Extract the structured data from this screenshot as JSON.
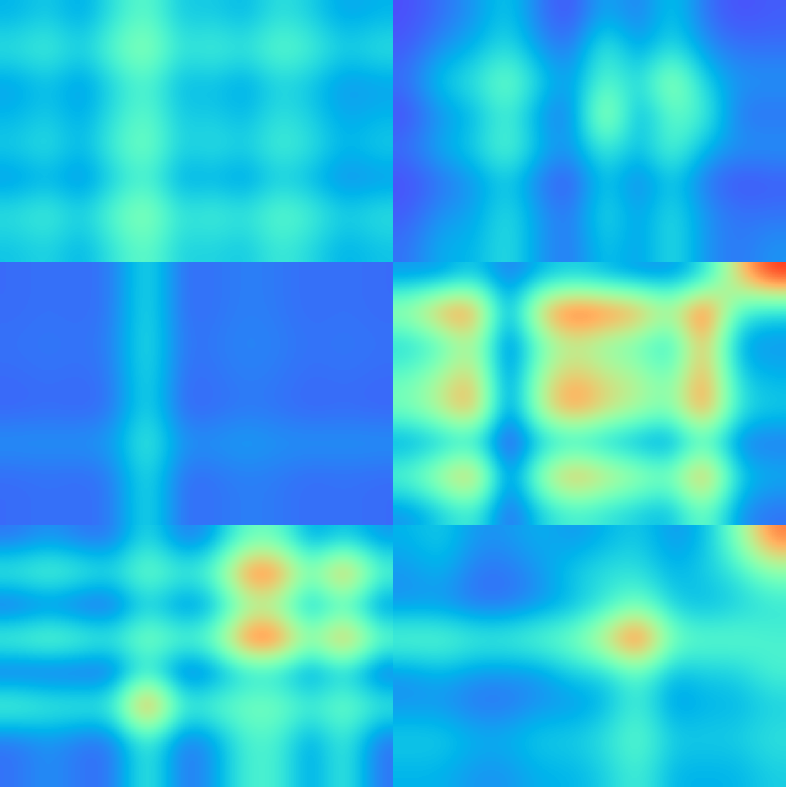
{
  "chart_data": [
    {
      "type": "heatmap",
      "color": "rainbow",
      "tick_labels": false,
      "clim": [
        0,
        1
      ],
      "cells": [
        [
          0.25,
          0.3,
          0.22,
          0.35,
          0.45,
          0.28,
          0.3,
          0.25,
          0.35,
          0.3,
          0.22,
          0.25
        ],
        [
          0.35,
          0.4,
          0.3,
          0.45,
          0.55,
          0.35,
          0.4,
          0.35,
          0.45,
          0.4,
          0.3,
          0.35
        ],
        [
          0.22,
          0.28,
          0.2,
          0.32,
          0.42,
          0.25,
          0.28,
          0.22,
          0.32,
          0.28,
          0.2,
          0.22
        ],
        [
          0.25,
          0.3,
          0.22,
          0.35,
          0.45,
          0.28,
          0.3,
          0.25,
          0.35,
          0.3,
          0.22,
          0.25
        ],
        [
          0.3,
          0.35,
          0.25,
          0.4,
          0.5,
          0.3,
          0.35,
          0.3,
          0.4,
          0.35,
          0.25,
          0.3
        ],
        [
          0.2,
          0.25,
          0.18,
          0.3,
          0.4,
          0.22,
          0.25,
          0.2,
          0.3,
          0.25,
          0.18,
          0.2
        ],
        [
          0.35,
          0.4,
          0.3,
          0.45,
          0.55,
          0.35,
          0.4,
          0.35,
          0.45,
          0.4,
          0.3,
          0.35
        ],
        [
          0.28,
          0.32,
          0.24,
          0.36,
          0.46,
          0.3,
          0.32,
          0.28,
          0.38,
          0.32,
          0.24,
          0.28
        ]
      ]
    },
    {
      "type": "heatmap",
      "color": "rainbow",
      "tick_labels": false,
      "clim": [
        0,
        1
      ],
      "cells": [
        [
          0.1,
          0.15,
          0.2,
          0.3,
          0.15,
          0.1,
          0.25,
          0.15,
          0.3,
          0.15,
          0.1,
          0.12
        ],
        [
          0.12,
          0.2,
          0.25,
          0.35,
          0.2,
          0.15,
          0.4,
          0.2,
          0.35,
          0.2,
          0.15,
          0.15
        ],
        [
          0.15,
          0.3,
          0.35,
          0.5,
          0.3,
          0.2,
          0.45,
          0.3,
          0.6,
          0.3,
          0.2,
          0.2
        ],
        [
          0.1,
          0.2,
          0.25,
          0.4,
          0.2,
          0.15,
          0.65,
          0.2,
          0.45,
          0.4,
          0.15,
          0.15
        ],
        [
          0.15,
          0.25,
          0.3,
          0.45,
          0.25,
          0.2,
          0.4,
          0.25,
          0.45,
          0.25,
          0.2,
          0.2
        ],
        [
          0.1,
          0.15,
          0.2,
          0.3,
          0.15,
          0.1,
          0.3,
          0.15,
          0.3,
          0.15,
          0.1,
          0.12
        ],
        [
          0.12,
          0.2,
          0.22,
          0.35,
          0.2,
          0.15,
          0.35,
          0.2,
          0.35,
          0.2,
          0.15,
          0.15
        ],
        [
          0.15,
          0.25,
          0.25,
          0.35,
          0.2,
          0.15,
          0.3,
          0.2,
          0.35,
          0.2,
          0.15,
          0.2
        ]
      ]
    },
    {
      "type": "heatmap",
      "color": "rainbow",
      "tick_labels": false,
      "clim": [
        0,
        1
      ],
      "cells": [
        [
          0.14,
          0.15,
          0.14,
          0.16,
          0.35,
          0.14,
          0.15,
          0.17,
          0.16,
          0.14,
          0.15,
          0.14
        ],
        [
          0.14,
          0.15,
          0.14,
          0.16,
          0.35,
          0.14,
          0.15,
          0.17,
          0.16,
          0.14,
          0.15,
          0.14
        ],
        [
          0.15,
          0.16,
          0.15,
          0.17,
          0.36,
          0.15,
          0.16,
          0.18,
          0.17,
          0.15,
          0.16,
          0.15
        ],
        [
          0.14,
          0.15,
          0.14,
          0.16,
          0.35,
          0.14,
          0.15,
          0.17,
          0.16,
          0.14,
          0.15,
          0.14
        ],
        [
          0.13,
          0.14,
          0.13,
          0.15,
          0.34,
          0.13,
          0.14,
          0.16,
          0.15,
          0.13,
          0.14,
          0.13
        ],
        [
          0.2,
          0.2,
          0.2,
          0.22,
          0.4,
          0.2,
          0.2,
          0.22,
          0.2,
          0.2,
          0.2,
          0.2
        ],
        [
          0.14,
          0.15,
          0.14,
          0.16,
          0.35,
          0.14,
          0.15,
          0.17,
          0.16,
          0.14,
          0.15,
          0.14
        ],
        [
          0.14,
          0.15,
          0.14,
          0.16,
          0.35,
          0.14,
          0.15,
          0.17,
          0.16,
          0.14,
          0.15,
          0.14
        ]
      ]
    },
    {
      "type": "heatmap",
      "color": "rainbow",
      "tick_labels": false,
      "clim": [
        0,
        1
      ],
      "cells": [
        [
          0.2,
          0.2,
          0.3,
          0.15,
          0.25,
          0.3,
          0.25,
          0.2,
          0.2,
          0.3,
          0.7,
          0.95
        ],
        [
          0.6,
          0.85,
          0.9,
          0.15,
          0.8,
          0.95,
          0.9,
          0.85,
          0.6,
          1.0,
          0.4,
          0.3
        ],
        [
          0.3,
          0.4,
          0.6,
          0.1,
          0.45,
          0.6,
          0.5,
          0.45,
          0.3,
          0.8,
          0.2,
          0.2
        ],
        [
          0.45,
          0.6,
          0.75,
          0.1,
          0.6,
          0.75,
          0.65,
          0.6,
          0.45,
          0.85,
          0.3,
          0.25
        ],
        [
          0.5,
          0.65,
          0.85,
          0.1,
          0.65,
          0.85,
          0.7,
          0.6,
          0.5,
          0.9,
          0.35,
          0.3
        ],
        [
          0.2,
          0.25,
          0.3,
          0.05,
          0.25,
          0.3,
          0.25,
          0.2,
          0.15,
          0.4,
          0.15,
          0.15
        ],
        [
          0.45,
          0.65,
          0.85,
          0.1,
          0.6,
          0.85,
          0.7,
          0.6,
          0.5,
          0.9,
          0.3,
          0.25
        ],
        [
          0.2,
          0.3,
          0.4,
          0.1,
          0.3,
          0.4,
          0.35,
          0.3,
          0.25,
          0.5,
          0.2,
          0.15
        ]
      ]
    },
    {
      "type": "heatmap",
      "color": "rainbow",
      "tick_labels": false,
      "clim": [
        0,
        1
      ],
      "cells": [
        [
          0.15,
          0.2,
          0.15,
          0.15,
          0.35,
          0.15,
          0.2,
          0.45,
          0.45,
          0.2,
          0.3,
          0.2
        ],
        [
          0.4,
          0.45,
          0.4,
          0.35,
          0.5,
          0.4,
          0.45,
          0.9,
          0.9,
          0.5,
          0.9,
          0.45
        ],
        [
          0.1,
          0.15,
          0.1,
          0.1,
          0.3,
          0.15,
          0.2,
          0.5,
          0.5,
          0.2,
          0.4,
          0.15
        ],
        [
          0.45,
          0.5,
          0.45,
          0.4,
          0.55,
          0.45,
          0.5,
          0.95,
          0.95,
          0.55,
          0.9,
          0.5
        ],
        [
          0.1,
          0.1,
          0.1,
          0.1,
          0.35,
          0.1,
          0.15,
          0.3,
          0.3,
          0.15,
          0.3,
          0.1
        ],
        [
          0.45,
          0.4,
          0.4,
          0.4,
          1.0,
          0.4,
          0.45,
          0.5,
          0.5,
          0.4,
          0.5,
          0.4
        ],
        [
          0.15,
          0.2,
          0.15,
          0.15,
          0.4,
          0.15,
          0.2,
          0.4,
          0.4,
          0.2,
          0.4,
          0.15
        ],
        [
          0.15,
          0.2,
          0.15,
          0.15,
          0.4,
          0.15,
          0.2,
          0.4,
          0.4,
          0.2,
          0.4,
          0.15
        ]
      ]
    },
    {
      "type": "heatmap",
      "color": "rainbow",
      "tick_labels": false,
      "clim": [
        0,
        1
      ],
      "cells": [
        [
          0.25,
          0.3,
          0.2,
          0.2,
          0.25,
          0.2,
          0.25,
          0.3,
          0.2,
          0.25,
          0.5,
          0.85
        ],
        [
          0.2,
          0.25,
          0.15,
          0.15,
          0.2,
          0.3,
          0.35,
          0.35,
          0.25,
          0.3,
          0.35,
          0.5
        ],
        [
          0.2,
          0.2,
          0.15,
          0.15,
          0.2,
          0.25,
          0.35,
          0.5,
          0.3,
          0.25,
          0.3,
          0.35
        ],
        [
          0.45,
          0.45,
          0.4,
          0.4,
          0.45,
          0.5,
          0.7,
          1.0,
          0.5,
          0.45,
          0.45,
          0.4
        ],
        [
          0.2,
          0.25,
          0.2,
          0.2,
          0.2,
          0.3,
          0.3,
          0.45,
          0.25,
          0.3,
          0.3,
          0.4
        ],
        [
          0.2,
          0.2,
          0.15,
          0.15,
          0.2,
          0.2,
          0.25,
          0.4,
          0.2,
          0.25,
          0.25,
          0.3
        ],
        [
          0.3,
          0.3,
          0.25,
          0.25,
          0.3,
          0.3,
          0.35,
          0.45,
          0.3,
          0.3,
          0.3,
          0.35
        ],
        [
          0.25,
          0.25,
          0.2,
          0.2,
          0.25,
          0.25,
          0.3,
          0.4,
          0.25,
          0.25,
          0.25,
          0.3
        ]
      ]
    }
  ]
}
